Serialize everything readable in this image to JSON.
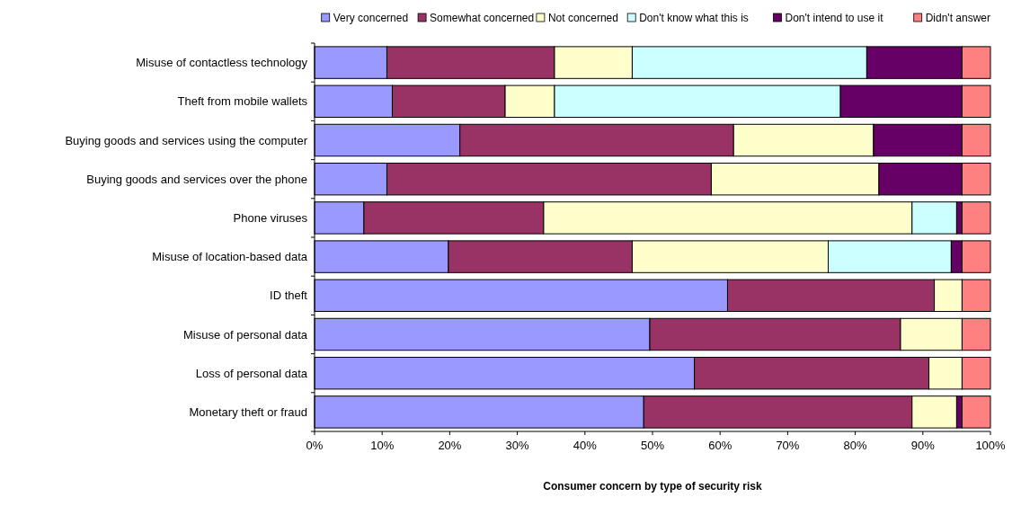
{
  "chart_data": {
    "type": "bar",
    "orientation": "horizontal",
    "stacked": true,
    "title": "Consumer concern by type of security risk",
    "categories": [
      "Misuse of contactless technology",
      "Theft from mobile wallets",
      "Buying goods and services using the computer",
      "Buying goods and services over the phone",
      "Phone viruses",
      "Misuse of location-based data",
      "ID theft",
      "Misuse of personal data",
      "Loss of personal data",
      "Monetary theft or fraud"
    ],
    "series": [
      {
        "name": "Very concerned",
        "color": "#9999ff",
        "values": [
          10.7,
          11.5,
          21.5,
          10.7,
          7.3,
          19.8,
          61.1,
          49.6,
          56.2,
          48.7
        ]
      },
      {
        "name": "Somewhat concerned",
        "color": "#993366",
        "values": [
          24.8,
          16.7,
          40.5,
          48.0,
          26.6,
          27.2,
          30.6,
          37.1,
          34.7,
          39.7
        ]
      },
      {
        "name": "Not concerned",
        "color": "#ffffcc",
        "values": [
          11.5,
          7.3,
          20.7,
          24.8,
          54.5,
          29.0,
          4.1,
          9.1,
          4.9,
          6.6
        ]
      },
      {
        "name": "Don't know what this is",
        "color": "#ccffff",
        "values": [
          34.7,
          42.3,
          0,
          0,
          6.6,
          18.2,
          0,
          0,
          0,
          0
        ]
      },
      {
        "name": "Don't intend to use it",
        "color": "#660066",
        "values": [
          14.1,
          18.0,
          13.1,
          12.3,
          0.8,
          1.6,
          0,
          0,
          0,
          0.8
        ]
      },
      {
        "name": "Didn't answer",
        "color": "#ff8080",
        "values": [
          4.2,
          4.2,
          4.2,
          4.2,
          4.2,
          4.2,
          4.2,
          4.2,
          4.2,
          4.2
        ]
      }
    ],
    "xlim": [
      0,
      100
    ],
    "xticks": [
      {
        "value": 0,
        "label": "0%"
      },
      {
        "value": 10,
        "label": "10%"
      },
      {
        "value": 20,
        "label": "20%"
      },
      {
        "value": 30,
        "label": "30%"
      },
      {
        "value": 40,
        "label": "40%"
      },
      {
        "value": 50,
        "label": "50%"
      },
      {
        "value": 60,
        "label": "60%"
      },
      {
        "value": 70,
        "label": "70%"
      },
      {
        "value": 80,
        "label": "80%"
      },
      {
        "value": 90,
        "label": "90%"
      },
      {
        "value": 100,
        "label": "100%"
      }
    ],
    "grid": false,
    "legend": "top"
  }
}
